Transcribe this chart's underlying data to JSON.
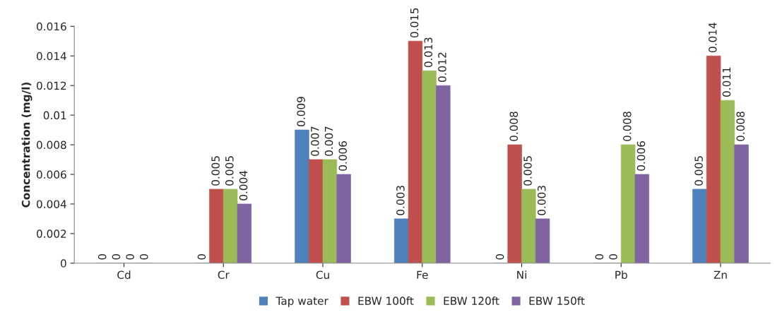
{
  "chart_data": {
    "type": "bar",
    "ylabel": "Concentration (mg/l)",
    "categories": [
      "Cd",
      "Cr",
      "Cu",
      "Fe",
      "Ni",
      "Pb",
      "Zn"
    ],
    "series": [
      {
        "name": "Tap water",
        "color": "#4f81bd",
        "values": [
          0,
          0,
          0.009,
          0.003,
          0,
          0,
          0.005
        ]
      },
      {
        "name": "EBW 100ft",
        "color": "#c0504d",
        "values": [
          0,
          0.005,
          0.007,
          0.015,
          0.008,
          0,
          0.014
        ]
      },
      {
        "name": "EBW 120ft",
        "color": "#9bbb59",
        "values": [
          0,
          0.005,
          0.007,
          0.013,
          0.005,
          0.008,
          0.011
        ]
      },
      {
        "name": "EBW 150ft",
        "color": "#8064a2",
        "values": [
          0,
          0.004,
          0.006,
          0.012,
          0.003,
          0.006,
          0.008
        ]
      }
    ],
    "ylim": [
      0,
      0.016
    ],
    "yticks": [
      0,
      0.002,
      0.004,
      0.006,
      0.008,
      0.01,
      0.012,
      0.014,
      0.016
    ],
    "data_labels": true,
    "grid": false,
    "legend": "bottom"
  }
}
